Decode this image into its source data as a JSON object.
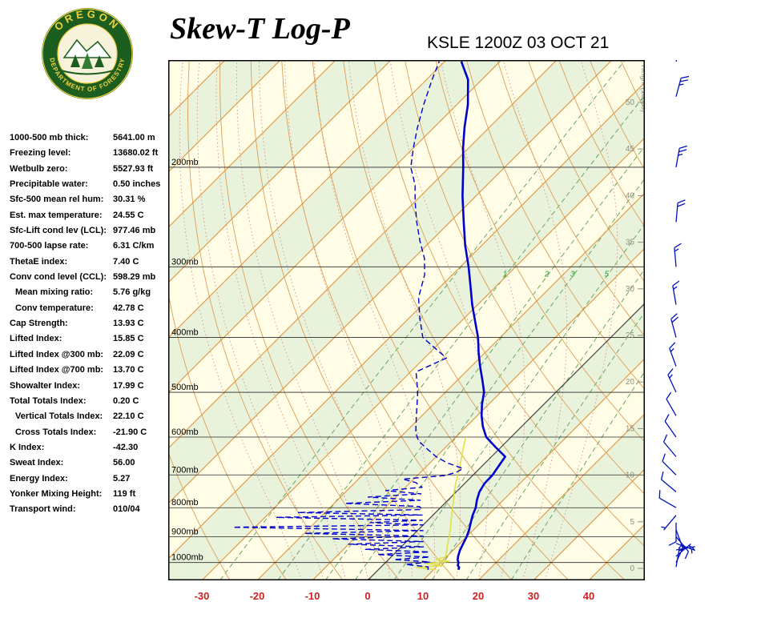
{
  "header": {
    "title": "Skew-T Log-P",
    "station": "KSLE 1200Z 03 OCT 21",
    "logo_top_text": "OREGON",
    "logo_bottom_text": "DEPARTMENT OF FORESTRY"
  },
  "stats": [
    {
      "label": "1000-500 mb thick:",
      "value": "5641.00 m",
      "indent": false
    },
    {
      "label": "Freezing level:",
      "value": "13680.02 ft",
      "indent": false
    },
    {
      "label": "Wetbulb zero:",
      "value": "5527.93 ft",
      "indent": false
    },
    {
      "label": "Precipitable water:",
      "value": "0.50 inches",
      "indent": false
    },
    {
      "label": "Sfc-500 mean rel hum:",
      "value": "30.31 %",
      "indent": false
    },
    {
      "label": "Est. max temperature:",
      "value": "24.55 C",
      "indent": false
    },
    {
      "label": "Sfc-Lift cond lev (LCL):",
      "value": "977.46 mb",
      "indent": false
    },
    {
      "label": "700-500 lapse rate:",
      "value": "6.31 C/km",
      "indent": false
    },
    {
      "label": "ThetaE index:",
      "value": "7.40 C",
      "indent": false
    },
    {
      "label": "Conv cond level (CCL):",
      "value": "598.29 mb",
      "indent": false
    },
    {
      "label": "Mean mixing ratio:",
      "value": "5.76 g/kg",
      "indent": true
    },
    {
      "label": "Conv temperature:",
      "value": "42.78 C",
      "indent": true
    },
    {
      "label": "Cap Strength:",
      "value": "13.93 C",
      "indent": false
    },
    {
      "label": "Lifted Index:",
      "value": "15.85 C",
      "indent": false
    },
    {
      "label": "Lifted Index @300 mb:",
      "value": "22.09 C",
      "indent": false
    },
    {
      "label": "Lifted Index @700 mb:",
      "value": "13.70 C",
      "indent": false
    },
    {
      "label": "Showalter Index:",
      "value": "17.99 C",
      "indent": false
    },
    {
      "label": "Total Totals Index:",
      "value": "0.20 C",
      "indent": false
    },
    {
      "label": "Vertical Totals Index:",
      "value": "22.10 C",
      "indent": true
    },
    {
      "label": "Cross Totals Index:",
      "value": "-21.90 C",
      "indent": true
    },
    {
      "label": "K Index:",
      "value": "-42.30",
      "indent": false
    },
    {
      "label": "Sweat Index:",
      "value": "56.00",
      "indent": false
    },
    {
      "label": "Energy Index:",
      "value": "5.27",
      "indent": false
    },
    {
      "label": "Yonker Mixing Height:",
      "value": "119 ft",
      "indent": false
    },
    {
      "label": "Transport wind:",
      "value": "010/04",
      "indent": false
    }
  ],
  "chart_data": {
    "type": "line",
    "title": "Skew-T Log-P",
    "station": "KSLE 1200Z 03 OCT 21",
    "pressure_axis": {
      "labels": [
        "200mb",
        "300mb",
        "400mb",
        "500mb",
        "600mb",
        "700mb",
        "800mb",
        "900mb",
        "1000mb"
      ],
      "values_mb": [
        200,
        300,
        400,
        500,
        600,
        700,
        800,
        900,
        1000
      ],
      "range_mb": [
        130,
        1074
      ],
      "scale": "log"
    },
    "temp_axis": {
      "ticks_c": [
        -30,
        -20,
        -10,
        0,
        10,
        20,
        30,
        40
      ],
      "unit": "C"
    },
    "height_axis": {
      "title": "Height (1000s)",
      "ticks_kft": [
        0,
        5,
        10,
        15,
        20,
        25,
        30,
        35,
        40,
        45,
        50
      ]
    },
    "isotherm_step_c": 10,
    "mixing_ratio_lines_gkg": [
      0.4,
      1,
      2,
      3,
      5,
      8,
      12,
      20
    ],
    "mixing_ratio_labeled": [
      1,
      2,
      3,
      5
    ],
    "moist_adiabat_starts_c": [
      -12,
      -8,
      -4,
      0,
      4,
      8,
      12,
      16,
      20,
      24,
      28,
      32
    ],
    "dry_adiabat_theta_c": [
      -30,
      -20,
      -10,
      0,
      10,
      20,
      30,
      40,
      50,
      60,
      70,
      80,
      90,
      100,
      110,
      120,
      130,
      140,
      150,
      160
    ],
    "temperature_profile": [
      [
        1030,
        14.5
      ],
      [
        1020,
        14.2
      ],
      [
        1012,
        13.6
      ],
      [
        1000,
        13.2
      ],
      [
        990,
        12.6
      ],
      [
        975,
        12.0
      ],
      [
        950,
        11.2
      ],
      [
        925,
        10.6
      ],
      [
        900,
        10.0
      ],
      [
        875,
        9.2
      ],
      [
        850,
        8.2
      ],
      [
        825,
        7.2
      ],
      [
        800,
        6.4
      ],
      [
        775,
        5.2
      ],
      [
        750,
        4.2
      ],
      [
        725,
        3.6
      ],
      [
        700,
        3.5
      ],
      [
        685,
        3.2
      ],
      [
        665,
        2.8
      ],
      [
        650,
        2.5
      ],
      [
        625,
        -1.0
      ],
      [
        600,
        -4.5
      ],
      [
        575,
        -7.0
      ],
      [
        550,
        -9.2
      ],
      [
        525,
        -11.2
      ],
      [
        500,
        -13.0
      ],
      [
        475,
        -15.6
      ],
      [
        450,
        -18.4
      ],
      [
        425,
        -21.2
      ],
      [
        400,
        -24.0
      ],
      [
        375,
        -27.4
      ],
      [
        350,
        -31.0
      ],
      [
        325,
        -34.6
      ],
      [
        300,
        -38.5
      ],
      [
        275,
        -43.0
      ],
      [
        250,
        -47.5
      ],
      [
        225,
        -52.4
      ],
      [
        200,
        -57.5
      ],
      [
        185,
        -61.0
      ],
      [
        170,
        -64.5
      ],
      [
        155,
        -68.0
      ],
      [
        140,
        -72.5
      ],
      [
        130,
        -77.0
      ]
    ],
    "dewpoint_profile": [
      [
        1030,
        9
      ],
      [
        1018,
        8.5
      ],
      [
        1008,
        4
      ],
      [
        998,
        8
      ],
      [
        988,
        1
      ],
      [
        978,
        7
      ],
      [
        968,
        -3
      ],
      [
        958,
        6
      ],
      [
        948,
        -6
      ],
      [
        938,
        4
      ],
      [
        928,
        -10
      ],
      [
        918,
        3
      ],
      [
        908,
        -14
      ],
      [
        898,
        2
      ],
      [
        888,
        -20
      ],
      [
        878,
        1
      ],
      [
        866,
        -34
      ],
      [
        858,
        0
      ],
      [
        850,
        -10
      ],
      [
        842,
        -1
      ],
      [
        832,
        -28
      ],
      [
        824,
        -2
      ],
      [
        816,
        -25
      ],
      [
        806,
        -3
      ],
      [
        796,
        -4
      ],
      [
        786,
        -18
      ],
      [
        776,
        -5
      ],
      [
        766,
        -15
      ],
      [
        756,
        -6
      ],
      [
        746,
        -13
      ],
      [
        736,
        -7
      ],
      [
        722,
        -9
      ],
      [
        712,
        -12
      ],
      [
        702,
        -5
      ],
      [
        692,
        -3.5
      ],
      [
        682,
        -3
      ],
      [
        666,
        -7
      ],
      [
        650,
        -10
      ],
      [
        630,
        -13
      ],
      [
        610,
        -16
      ],
      [
        590,
        -18
      ],
      [
        550,
        -21
      ],
      [
        500,
        -25
      ],
      [
        460,
        -29
      ],
      [
        435,
        -26
      ],
      [
        400,
        -34
      ],
      [
        370,
        -38
      ],
      [
        340,
        -42
      ],
      [
        310,
        -45
      ],
      [
        290,
        -48
      ],
      [
        270,
        -52
      ],
      [
        250,
        -56
      ],
      [
        230,
        -60
      ],
      [
        215,
        -63
      ],
      [
        200,
        -67
      ],
      [
        185,
        -70
      ],
      [
        170,
        -73
      ],
      [
        155,
        -76
      ],
      [
        140,
        -79
      ],
      [
        130,
        -81
      ]
    ],
    "parcel_profile": [
      [
        1030,
        10.5
      ],
      [
        1020,
        6.5
      ],
      [
        1012,
        11.0
      ],
      [
        1004,
        7.5
      ],
      [
        996,
        11.5
      ],
      [
        988,
        8.5
      ],
      [
        977,
        9.8
      ],
      [
        960,
        9.2
      ],
      [
        950,
        8.8
      ],
      [
        925,
        7.8
      ],
      [
        900,
        6.8
      ],
      [
        875,
        5.8
      ],
      [
        850,
        4.6
      ],
      [
        825,
        3.4
      ],
      [
        800,
        2.2
      ],
      [
        775,
        1.0
      ],
      [
        750,
        -0.4
      ],
      [
        725,
        -1.6
      ],
      [
        700,
        -2.8
      ],
      [
        675,
        -4.0
      ],
      [
        650,
        -5.4
      ],
      [
        625,
        -6.8
      ],
      [
        600,
        -8.2
      ]
    ],
    "wind_barbs": [
      [
        130,
        20,
        30
      ],
      [
        150,
        15,
        25
      ],
      [
        200,
        10,
        25
      ],
      [
        250,
        5,
        20
      ],
      [
        300,
        355,
        15
      ],
      [
        350,
        350,
        15
      ],
      [
        400,
        345,
        20
      ],
      [
        450,
        340,
        15
      ],
      [
        500,
        335,
        15
      ],
      [
        550,
        330,
        10
      ],
      [
        600,
        325,
        10
      ],
      [
        650,
        320,
        10
      ],
      [
        700,
        315,
        10
      ],
      [
        750,
        310,
        10
      ],
      [
        800,
        300,
        10
      ],
      [
        825,
        220,
        5
      ],
      [
        850,
        180,
        10
      ],
      [
        875,
        160,
        5
      ],
      [
        900,
        140,
        10
      ],
      [
        925,
        110,
        5
      ],
      [
        950,
        80,
        5
      ],
      [
        975,
        50,
        5
      ],
      [
        1000,
        25,
        5
      ],
      [
        1018,
        10,
        5
      ]
    ],
    "colors": {
      "band_yellow": "#FFFDE6",
      "band_green": "#E9F3DC",
      "isotherm": "#E0913C",
      "dry_adiabat": "#DD9E58",
      "moist_adiabat": "#D49090",
      "mixing_ratio": "#58A058",
      "mixing_label": "#2DA02D",
      "zero_isotherm": "#4A4A4A",
      "pressure_line": "#2A2A2A",
      "temp_trace": "#0000CC",
      "dew_trace": "#0000CC",
      "parcel": "#E0E04A",
      "barb": "#0011BB",
      "height_label": "#8F8F7E",
      "temp_label": "#CC2222",
      "border": "#000000"
    }
  }
}
